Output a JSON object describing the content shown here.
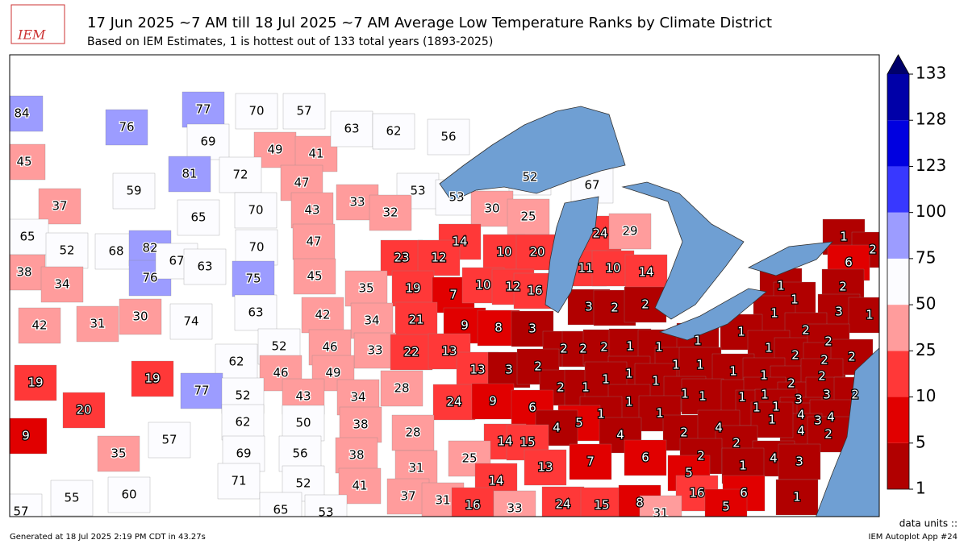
{
  "logo": "IEM",
  "title": "17 Jun 2025 ~7 AM till 18 Jul 2025 ~7 AM Average Low Temperature Ranks by Climate District",
  "subtitle": "Based on IEM Estimates, 1 is hottest out of 133 total years (1893-2025)",
  "colorbar": {
    "ticks": [
      1,
      5,
      10,
      25,
      50,
      75,
      100,
      123,
      128,
      133
    ],
    "colors": [
      "#b10000",
      "#e10000",
      "#ff3838",
      "#ff9c9c",
      "#fcfcff",
      "#9c9cff",
      "#3838ff",
      "#0000e0",
      "#0000a8"
    ],
    "extend_color": "#00006a"
  },
  "districts": [
    84,
    76,
    45,
    37,
    59,
    77,
    70,
    57,
    69,
    49,
    41,
    81,
    72,
    47,
    63,
    62,
    56,
    52,
    67,
    53,
    53,
    33,
    32,
    30,
    25,
    24,
    29,
    65,
    70,
    43,
    65,
    52,
    68,
    82,
    76,
    67,
    63,
    70,
    47,
    75,
    45,
    14,
    23,
    12,
    10,
    20,
    11,
    10,
    14,
    38,
    34,
    30,
    42,
    31,
    74,
    63,
    42,
    35,
    19,
    7,
    10,
    12,
    16,
    3,
    2,
    2,
    1,
    2,
    6,
    1,
    1,
    2,
    1,
    3,
    1,
    34,
    21,
    9,
    8,
    3,
    52,
    46,
    62,
    33,
    22,
    13,
    2,
    2,
    2,
    1,
    1,
    1,
    1,
    2,
    1,
    2,
    2,
    2,
    2,
    46,
    49,
    13,
    3,
    2,
    1,
    1,
    1,
    1,
    1,
    2,
    2,
    19,
    19,
    77,
    28,
    43,
    34,
    52,
    2,
    1,
    1,
    1,
    1,
    1,
    1,
    1,
    3,
    3,
    2,
    24,
    9,
    6,
    1,
    20,
    62,
    50,
    38,
    1,
    1,
    4,
    3,
    4,
    4,
    2,
    1,
    1,
    5,
    4,
    4,
    2,
    4,
    1,
    9,
    57,
    28,
    14,
    15,
    2,
    35,
    69,
    56,
    38,
    25,
    7,
    6,
    2,
    4,
    3,
    1,
    31,
    13,
    5,
    14,
    71,
    52,
    41,
    55,
    60,
    37,
    31,
    16,
    33,
    24,
    15,
    8,
    16,
    6,
    1,
    5,
    31,
    57,
    65,
    53
  ],
  "footer": {
    "units": "data units ::",
    "generated": "Generated at 18 Jul 2025 2:19 PM CDT in 43.27s",
    "app": "IEM Autoplot App #24"
  }
}
